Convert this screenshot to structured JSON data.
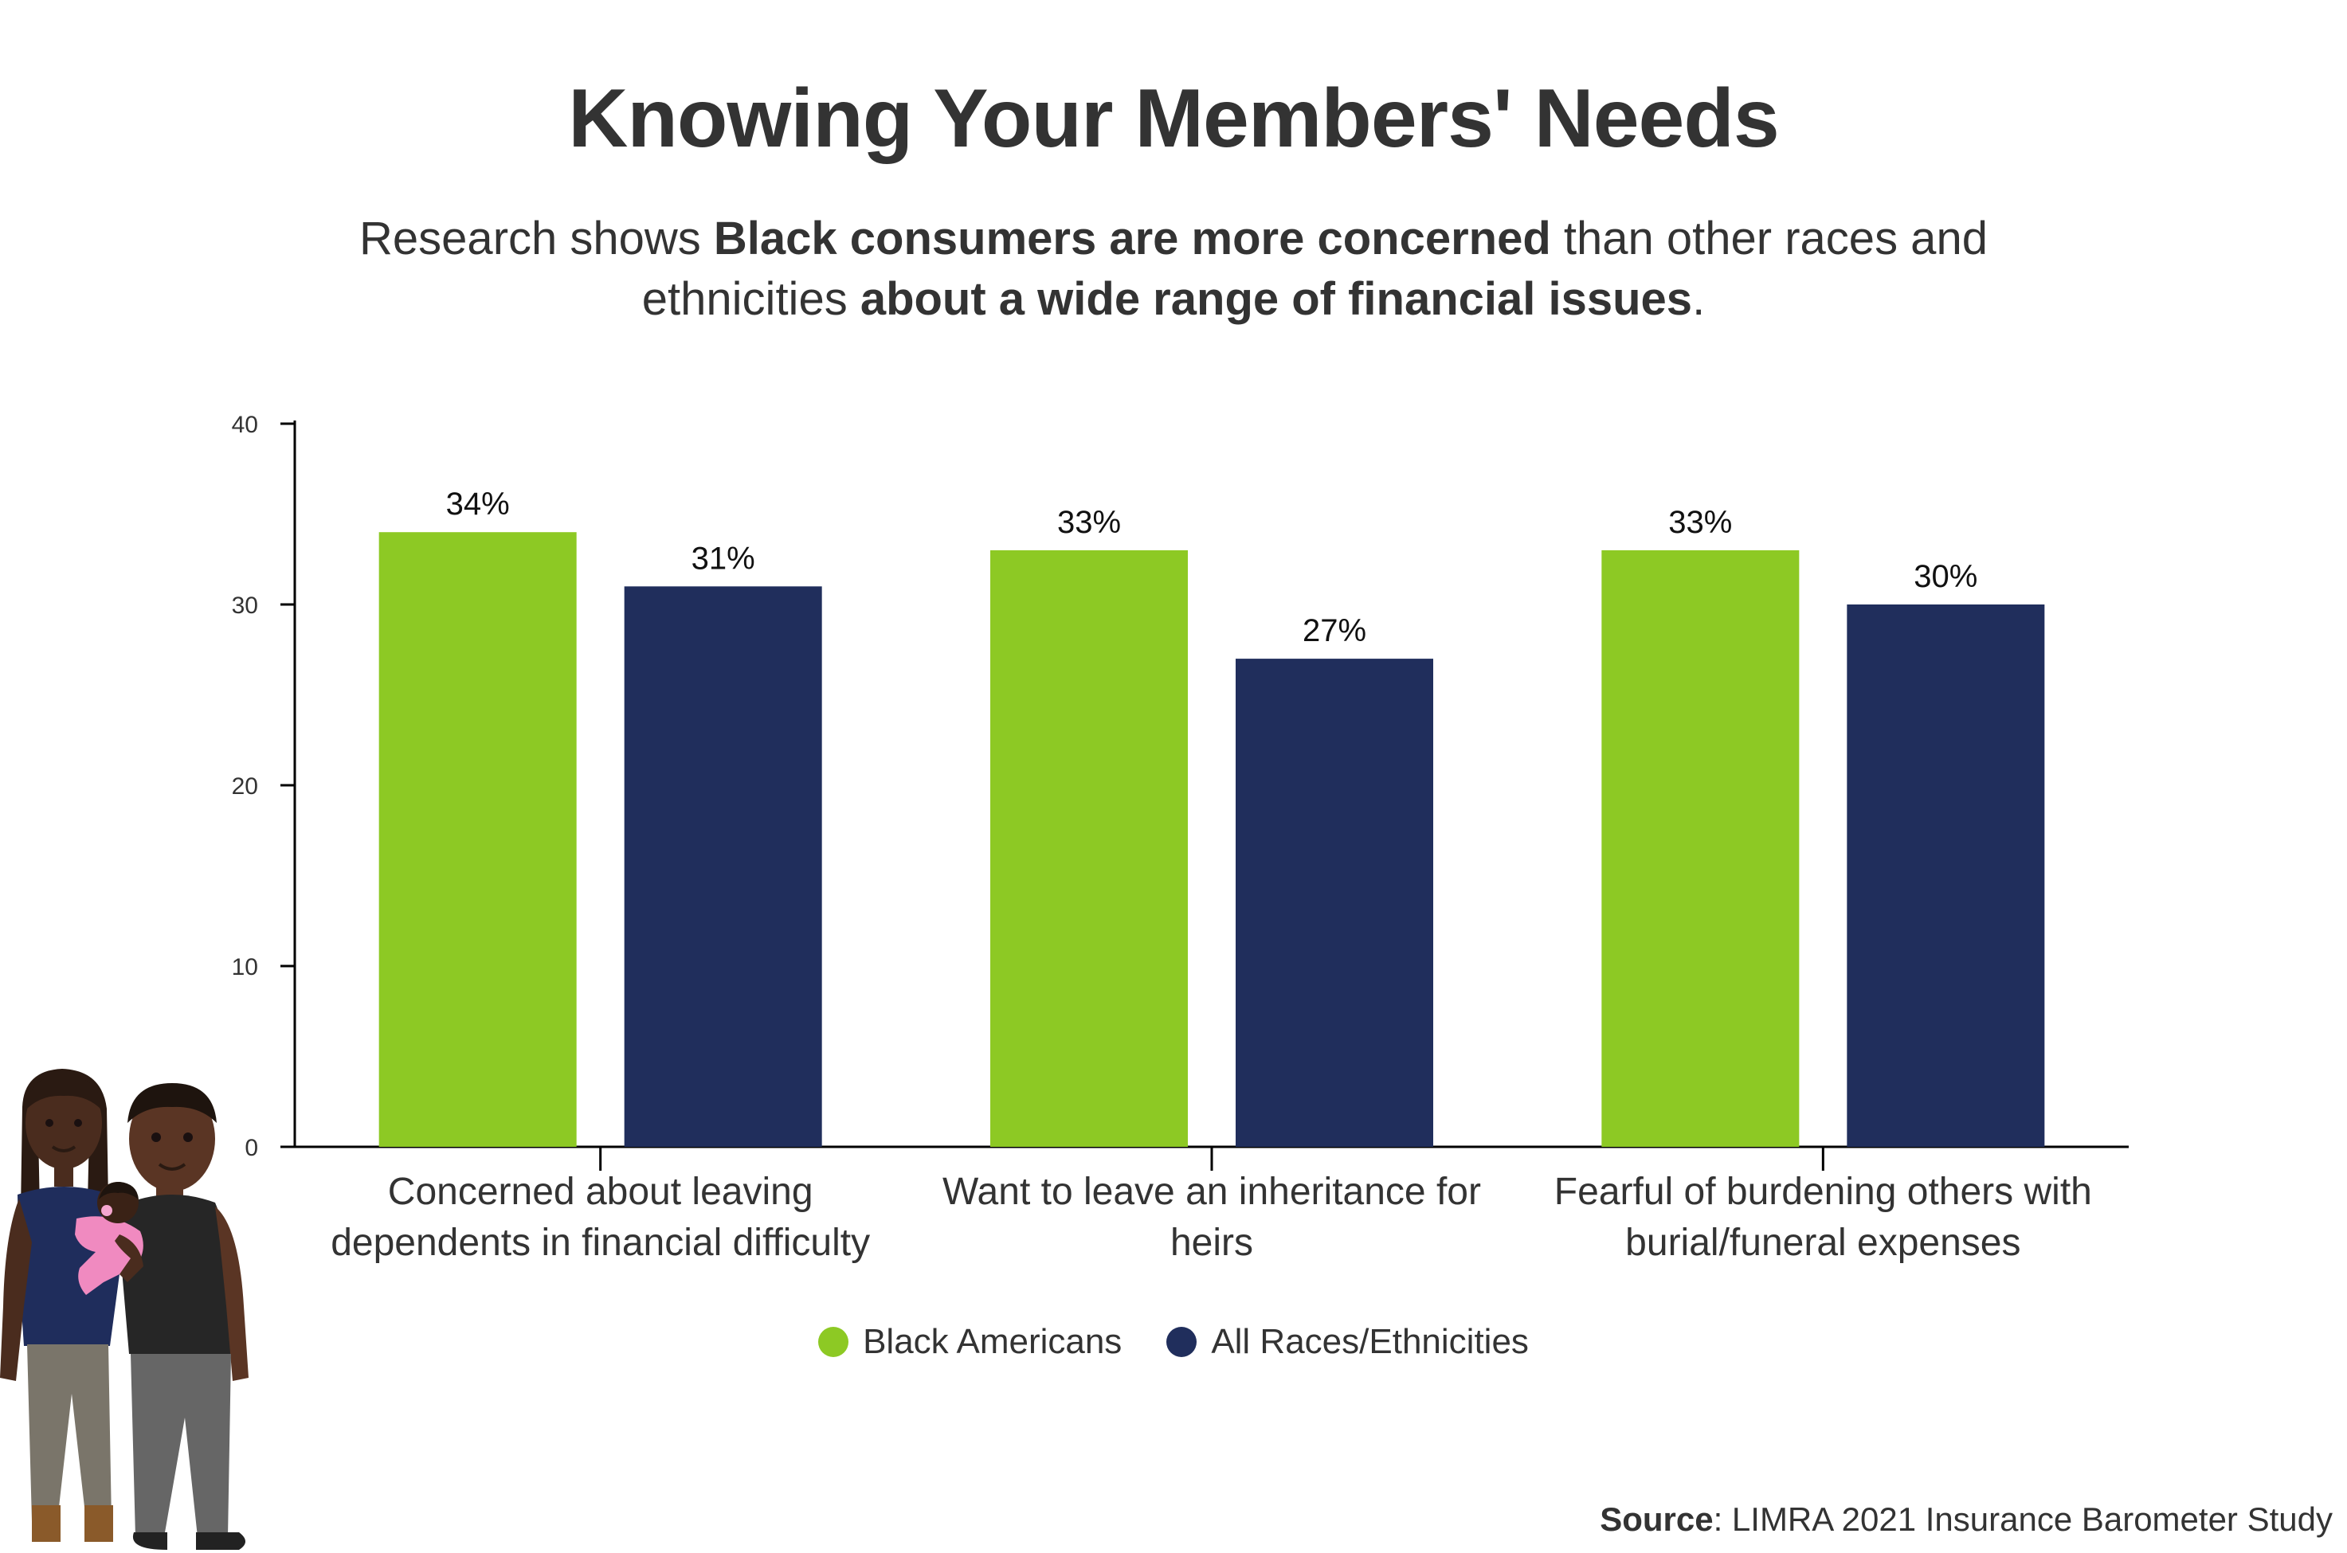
{
  "title": "Knowing Your Members' Needs",
  "subtitle": {
    "part1": "Research shows ",
    "bold1": "Black consumers are more concerned",
    "part2": " than other races and ethnicities ",
    "bold2": "about a wide range of financial issues",
    "part3": "."
  },
  "colors": {
    "black_americans": "#8DC924",
    "all_races": "#202E5C",
    "text": "#333333"
  },
  "chart_data": {
    "type": "bar",
    "categories": [
      [
        "Concerned about leaving",
        "dependents in financial difficulty"
      ],
      [
        "Want to leave an inheritance for",
        "heirs"
      ],
      [
        "Fearful of burdening others with",
        "burial/funeral expenses"
      ]
    ],
    "series": [
      {
        "name": "Black Americans",
        "values": [
          34,
          33,
          33
        ],
        "labels": [
          "34%",
          "33%",
          "33%"
        ]
      },
      {
        "name": "All Races/Ethnicities",
        "values": [
          31,
          27,
          30
        ],
        "labels": [
          "31%",
          "27%",
          "30%"
        ]
      }
    ],
    "ylim": [
      0,
      40
    ],
    "yticks": [
      0,
      10,
      20,
      30,
      40
    ],
    "legend_position": "bottom-center",
    "grid": false
  },
  "source": {
    "label": "Source",
    "text": ": LIMRA 2021 Insurance Barometer Study"
  }
}
